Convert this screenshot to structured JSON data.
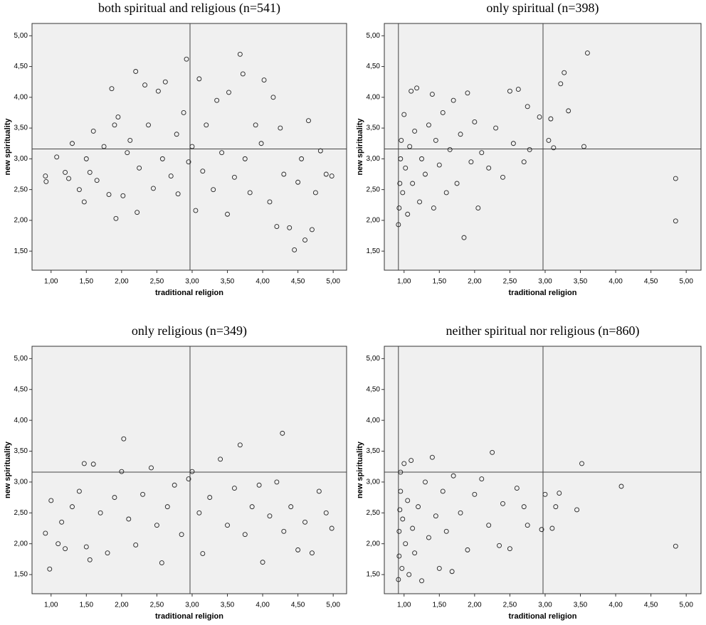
{
  "chart_data": [
    {
      "type": "scatter",
      "title": "both spiritual and religious (n=541)",
      "xlabel": "traditional religion",
      "ylabel": "new spirituality",
      "xlim": [
        0.73,
        5.19
      ],
      "ylim": [
        1.19,
        5.2
      ],
      "xticks": [
        {
          "value": 1,
          "label": "1,00"
        },
        {
          "value": 1.5,
          "label": "1,50"
        },
        {
          "value": 2,
          "label": "2,00"
        },
        {
          "value": 2.5,
          "label": "2,50"
        },
        {
          "value": 3,
          "label": "3,00"
        },
        {
          "value": 3.5,
          "label": "3,50"
        },
        {
          "value": 4,
          "label": "4,00"
        },
        {
          "value": 4.5,
          "label": "4,50"
        },
        {
          "value": 5,
          "label": "5,00"
        }
      ],
      "yticks": [
        {
          "value": 1.5,
          "label": "1,50"
        },
        {
          "value": 2,
          "label": "2,00"
        },
        {
          "value": 2.5,
          "label": "2,50"
        },
        {
          "value": 3,
          "label": "3,00"
        },
        {
          "value": 3.5,
          "label": "3,50"
        },
        {
          "value": 4,
          "label": "4,00"
        },
        {
          "value": 4.5,
          "label": "4,50"
        },
        {
          "value": 5,
          "label": "5,00"
        }
      ],
      "reference_x": [
        2.97
      ],
      "reference_y": [
        3.16
      ],
      "color": "#222",
      "x": [
        0.92,
        0.93,
        1.08,
        1.2,
        1.25,
        1.3,
        1.4,
        1.47,
        1.5,
        1.55,
        1.6,
        1.65,
        1.75,
        1.82,
        1.86,
        1.9,
        1.92,
        1.95,
        2.02,
        2.08,
        2.12,
        2.2,
        2.22,
        2.25,
        2.33,
        2.38,
        2.45,
        2.52,
        2.58,
        2.62,
        2.7,
        2.78,
        2.8,
        2.88,
        2.92,
        2.95,
        3.0,
        3.05,
        3.1,
        3.15,
        3.2,
        3.3,
        3.35,
        3.42,
        3.5,
        3.52,
        3.6,
        3.68,
        3.72,
        3.75,
        3.82,
        3.9,
        3.98,
        4.02,
        4.1,
        4.15,
        4.2,
        4.25,
        4.3,
        4.38,
        4.45,
        4.5,
        4.55,
        4.6,
        4.65,
        4.7,
        4.75,
        4.82,
        4.9,
        4.98
      ],
      "y": [
        2.72,
        2.63,
        3.03,
        2.78,
        2.68,
        3.25,
        2.5,
        2.3,
        3.0,
        2.78,
        3.45,
        2.65,
        3.2,
        2.42,
        4.14,
        3.55,
        2.03,
        3.68,
        2.4,
        3.1,
        3.3,
        4.42,
        2.13,
        2.85,
        4.2,
        3.55,
        2.52,
        4.1,
        3.0,
        4.25,
        2.72,
        3.4,
        2.43,
        3.75,
        4.62,
        2.95,
        3.2,
        2.16,
        4.3,
        2.8,
        3.55,
        2.5,
        3.95,
        3.1,
        2.1,
        4.08,
        2.7,
        4.7,
        4.38,
        3.0,
        2.45,
        3.55,
        3.25,
        4.28,
        2.3,
        4.0,
        1.9,
        3.5,
        2.75,
        1.88,
        1.52,
        2.62,
        3.0,
        1.68,
        3.62,
        1.85,
        2.45,
        3.13,
        2.75,
        2.72
      ]
    },
    {
      "type": "scatter",
      "title": "only spiritual (n=398)",
      "xlabel": "traditional religion",
      "ylabel": "new spirituality",
      "xlim": [
        0.72,
        5.21
      ],
      "ylim": [
        1.19,
        5.2
      ],
      "xticks": [
        {
          "value": 1,
          "label": "1,00"
        },
        {
          "value": 1.5,
          "label": "1,50"
        },
        {
          "value": 2,
          "label": "2,00"
        },
        {
          "value": 2.5,
          "label": "2,50"
        },
        {
          "value": 3,
          "label": "3,00"
        },
        {
          "value": 3.5,
          "label": "3,50"
        },
        {
          "value": 4,
          "label": "4,00"
        },
        {
          "value": 4.5,
          "label": "4,50"
        },
        {
          "value": 5,
          "label": "5,00"
        }
      ],
      "yticks": [
        {
          "value": 1.5,
          "label": "1,50"
        },
        {
          "value": 2,
          "label": "2,00"
        },
        {
          "value": 2.5,
          "label": "2,50"
        },
        {
          "value": 3,
          "label": "3,00"
        },
        {
          "value": 3.5,
          "label": "3,50"
        },
        {
          "value": 4,
          "label": "4,00"
        },
        {
          "value": 4.5,
          "label": "4,50"
        },
        {
          "value": 5,
          "label": "5,00"
        }
      ],
      "reference_x": [
        0.92,
        2.97
      ],
      "reference_y": [
        3.16
      ],
      "color": "#222",
      "x": [
        0.92,
        0.93,
        0.94,
        0.95,
        0.96,
        0.98,
        1.0,
        1.02,
        1.05,
        1.08,
        1.1,
        1.12,
        1.15,
        1.18,
        1.22,
        1.25,
        1.3,
        1.35,
        1.4,
        1.42,
        1.45,
        1.5,
        1.55,
        1.6,
        1.65,
        1.7,
        1.75,
        1.8,
        1.85,
        1.9,
        1.95,
        2.0,
        2.05,
        2.1,
        2.2,
        2.3,
        2.4,
        2.5,
        2.55,
        2.62,
        2.7,
        2.75,
        2.78,
        2.92,
        3.05,
        3.08,
        3.12,
        3.22,
        3.27,
        3.33,
        3.55,
        3.6,
        4.85,
        4.85
      ],
      "y": [
        1.93,
        2.2,
        2.6,
        3.0,
        3.3,
        2.45,
        3.72,
        2.85,
        2.1,
        3.2,
        4.1,
        2.6,
        3.45,
        4.15,
        2.3,
        3.0,
        2.75,
        3.55,
        4.05,
        2.2,
        3.3,
        2.9,
        3.75,
        2.45,
        3.15,
        3.95,
        2.6,
        3.4,
        1.72,
        4.07,
        2.95,
        3.6,
        2.2,
        3.1,
        2.85,
        3.5,
        2.7,
        4.1,
        3.25,
        4.13,
        2.95,
        3.85,
        3.15,
        3.68,
        3.3,
        3.65,
        3.18,
        4.22,
        4.4,
        3.78,
        3.2,
        4.72,
        2.68,
        1.99
      ]
    },
    {
      "type": "scatter",
      "title": "only religious (n=349)",
      "xlabel": "traditional religion",
      "ylabel": "new spirituality",
      "xlim": [
        0.73,
        5.19
      ],
      "ylim": [
        1.19,
        5.2
      ],
      "xticks": [
        {
          "value": 1,
          "label": "1,00"
        },
        {
          "value": 1.5,
          "label": "1,50"
        },
        {
          "value": 2,
          "label": "2,00"
        },
        {
          "value": 2.5,
          "label": "2,50"
        },
        {
          "value": 3,
          "label": "3,00"
        },
        {
          "value": 3.5,
          "label": "3,50"
        },
        {
          "value": 4,
          "label": "4,00"
        },
        {
          "value": 4.5,
          "label": "4,50"
        },
        {
          "value": 5,
          "label": "5,00"
        }
      ],
      "yticks": [
        {
          "value": 1.5,
          "label": "1,50"
        },
        {
          "value": 2,
          "label": "2,00"
        },
        {
          "value": 2.5,
          "label": "2,50"
        },
        {
          "value": 3,
          "label": "3,00"
        },
        {
          "value": 3.5,
          "label": "3,50"
        },
        {
          "value": 4,
          "label": "4,00"
        },
        {
          "value": 4.5,
          "label": "4,50"
        },
        {
          "value": 5,
          "label": "5,00"
        }
      ],
      "reference_x": [
        2.97
      ],
      "reference_y": [
        3.16
      ],
      "color": "#222",
      "x": [
        0.92,
        0.98,
        1.0,
        1.1,
        1.15,
        1.2,
        1.3,
        1.4,
        1.47,
        1.5,
        1.55,
        1.6,
        1.7,
        1.8,
        1.9,
        2.0,
        2.03,
        2.1,
        2.2,
        2.3,
        2.42,
        2.5,
        2.57,
        2.65,
        2.75,
        2.85,
        2.95,
        3.0,
        3.1,
        3.15,
        3.25,
        3.4,
        3.5,
        3.6,
        3.68,
        3.75,
        3.85,
        3.95,
        4.0,
        4.1,
        4.2,
        4.28,
        4.3,
        4.4,
        4.5,
        4.6,
        4.7,
        4.8,
        4.9,
        4.98
      ],
      "y": [
        2.17,
        1.59,
        2.7,
        2.0,
        2.35,
        1.92,
        2.6,
        2.85,
        3.3,
        1.95,
        1.74,
        3.29,
        2.5,
        1.85,
        2.75,
        3.17,
        3.7,
        2.4,
        1.98,
        2.8,
        3.23,
        2.3,
        1.69,
        2.6,
        2.95,
        2.15,
        3.05,
        3.17,
        2.5,
        1.84,
        2.75,
        3.37,
        2.3,
        2.9,
        3.6,
        2.15,
        2.6,
        2.95,
        1.7,
        2.45,
        3.0,
        3.79,
        2.2,
        2.6,
        1.9,
        2.35,
        1.85,
        2.85,
        2.5,
        2.25
      ]
    },
    {
      "type": "scatter",
      "title": "neither spiritual nor religious (n=860)",
      "xlabel": "traditional religion",
      "ylabel": "new spirituality",
      "xlim": [
        0.72,
        5.21
      ],
      "ylim": [
        1.19,
        5.2
      ],
      "xticks": [
        {
          "value": 1,
          "label": "1,00"
        },
        {
          "value": 1.5,
          "label": "1,50"
        },
        {
          "value": 2,
          "label": "2,00"
        },
        {
          "value": 2.5,
          "label": "2,50"
        },
        {
          "value": 3,
          "label": "3,00"
        },
        {
          "value": 3.5,
          "label": "3,50"
        },
        {
          "value": 4,
          "label": "4,00"
        },
        {
          "value": 4.5,
          "label": "4,50"
        },
        {
          "value": 5,
          "label": "5,00"
        }
      ],
      "yticks": [
        {
          "value": 1.5,
          "label": "1,50"
        },
        {
          "value": 2,
          "label": "2,00"
        },
        {
          "value": 2.5,
          "label": "2,50"
        },
        {
          "value": 3,
          "label": "3,00"
        },
        {
          "value": 3.5,
          "label": "3,50"
        },
        {
          "value": 4,
          "label": "4,00"
        },
        {
          "value": 4.5,
          "label": "4,50"
        },
        {
          "value": 5,
          "label": "5,00"
        }
      ],
      "reference_x": [
        0.92,
        2.97
      ],
      "reference_y": [
        3.16
      ],
      "color": "#222",
      "x": [
        0.92,
        0.93,
        0.93,
        0.94,
        0.95,
        0.95,
        0.97,
        0.98,
        1.0,
        1.02,
        1.05,
        1.07,
        1.1,
        1.12,
        1.15,
        1.2,
        1.25,
        1.3,
        1.35,
        1.4,
        1.45,
        1.5,
        1.55,
        1.6,
        1.68,
        1.7,
        1.8,
        1.9,
        2.0,
        2.1,
        2.2,
        2.25,
        2.35,
        2.4,
        2.5,
        2.6,
        2.7,
        2.75,
        2.95,
        3.0,
        3.1,
        3.15,
        3.2,
        3.45,
        3.52,
        4.08,
        4.85
      ],
      "y": [
        1.42,
        1.8,
        2.2,
        2.55,
        2.85,
        3.16,
        1.6,
        2.4,
        3.3,
        2.0,
        2.7,
        1.5,
        3.35,
        2.25,
        1.85,
        2.6,
        1.4,
        3.0,
        2.1,
        3.4,
        2.45,
        1.6,
        2.85,
        2.2,
        1.55,
        3.1,
        2.5,
        1.9,
        2.8,
        3.05,
        2.3,
        3.48,
        1.97,
        2.65,
        1.92,
        2.9,
        2.6,
        2.3,
        2.23,
        2.8,
        2.25,
        2.6,
        2.82,
        2.55,
        3.3,
        2.93,
        1.96
      ]
    }
  ]
}
